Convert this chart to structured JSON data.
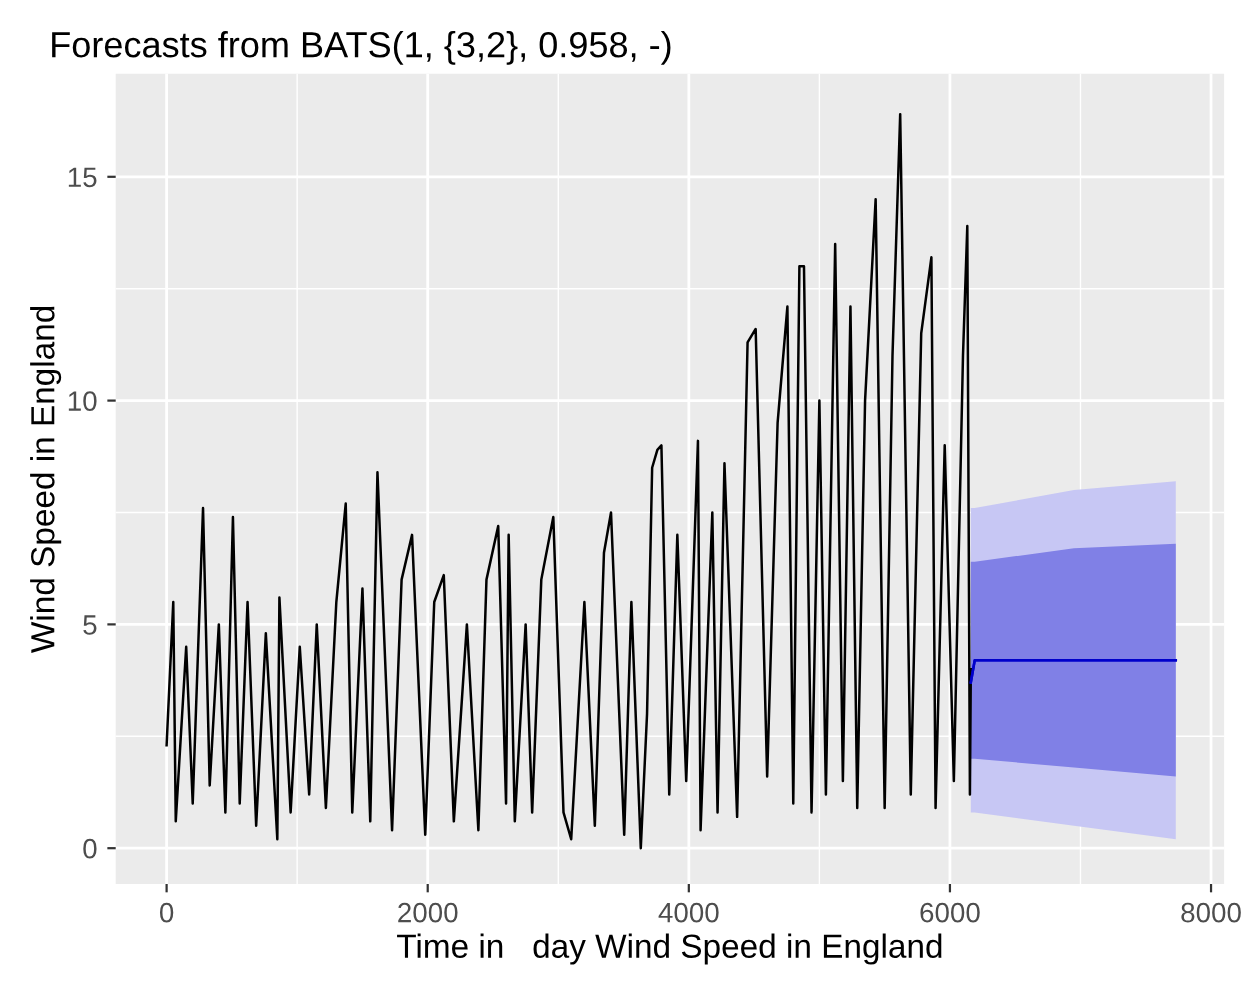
{
  "chart_data": {
    "type": "line",
    "title": "Forecasts from BATS(1, {3,2}, 0.958, -)",
    "xlabel": "Time in   day Wind Speed in England",
    "ylabel": "Wind Speed in England",
    "xlim": [
      -390,
      8100
    ],
    "ylim": [
      -0.8,
      17.3
    ],
    "xticks": [
      0,
      2000,
      4000,
      6000,
      8000
    ],
    "yticks": [
      0,
      5,
      10,
      15
    ],
    "grid": true,
    "legend": false,
    "series": [
      {
        "color": "#000000",
        "x": [
          0,
          51,
          70,
          150,
          200,
          279,
          330,
          400,
          450,
          508,
          560,
          620,
          686,
          760,
          848,
          864,
          950,
          1020,
          1092,
          1150,
          1220,
          1300,
          1372,
          1422,
          1500,
          1560,
          1615,
          1727,
          1800,
          1880,
          1981,
          2050,
          2123,
          2200,
          2300,
          2388,
          2450,
          2540,
          2600,
          2620,
          2667,
          2750,
          2800,
          2870,
          2962,
          3040,
          3099,
          3200,
          3280,
          3350,
          3404,
          3505,
          3560,
          3632,
          3680,
          3719,
          3759,
          3790,
          3850,
          3912,
          3980,
          4070,
          4090,
          4180,
          4220,
          4273,
          4370,
          4450,
          4512,
          4600,
          4680,
          4755,
          4800,
          4847,
          4882,
          4940,
          5000,
          5050,
          5121,
          5180,
          5238,
          5290,
          5350,
          5431,
          5500,
          5560,
          5619,
          5700,
          5780,
          5858,
          5890,
          5960,
          6030,
          6100,
          6133,
          6153,
          6160
        ],
        "values": [
          2.3,
          5.5,
          0.6,
          4.5,
          1.0,
          7.6,
          1.4,
          5.0,
          0.8,
          7.4,
          1.0,
          5.5,
          0.5,
          4.8,
          0.2,
          5.6,
          0.8,
          4.5,
          1.2,
          5.0,
          0.9,
          5.5,
          7.7,
          0.8,
          5.8,
          0.6,
          8.4,
          0.4,
          6.0,
          7.0,
          0.3,
          5.5,
          6.1,
          0.6,
          5.0,
          0.4,
          6.0,
          7.2,
          1.0,
          7.0,
          0.6,
          5.0,
          0.8,
          6.0,
          7.4,
          0.8,
          0.2,
          5.5,
          0.5,
          6.6,
          7.5,
          0.3,
          5.5,
          0.0,
          3.0,
          8.5,
          8.9,
          9.0,
          1.2,
          7.0,
          1.5,
          9.1,
          0.4,
          7.5,
          0.8,
          8.6,
          0.7,
          11.3,
          11.6,
          1.6,
          9.5,
          12.1,
          1.0,
          13.0,
          13.0,
          0.8,
          10.0,
          1.2,
          13.5,
          1.5,
          12.1,
          0.9,
          10.0,
          14.5,
          0.9,
          11.0,
          16.4,
          1.2,
          11.5,
          13.2,
          0.9,
          9.0,
          1.5,
          11.0,
          13.9,
          1.2,
          4.0
        ]
      },
      {
        "color": "#0000cc",
        "x": [
          6160,
          6190,
          6950,
          7730
        ],
        "values": [
          3.7,
          4.2,
          4.2,
          4.2
        ],
        "lower": [
          0.8,
          0.8,
          0.5,
          0.2
        ],
        "upper": [
          7.6,
          7.6,
          8.0,
          8.2
        ]
      },
      {
        "color": "#0000cc",
        "x": [
          6160,
          6190,
          6950,
          7730
        ],
        "values": [
          3.7,
          4.2,
          4.2,
          4.2
        ],
        "lower": [
          2.0,
          2.0,
          1.8,
          1.6
        ],
        "upper": [
          6.4,
          6.4,
          6.7,
          6.8
        ]
      }
    ]
  }
}
